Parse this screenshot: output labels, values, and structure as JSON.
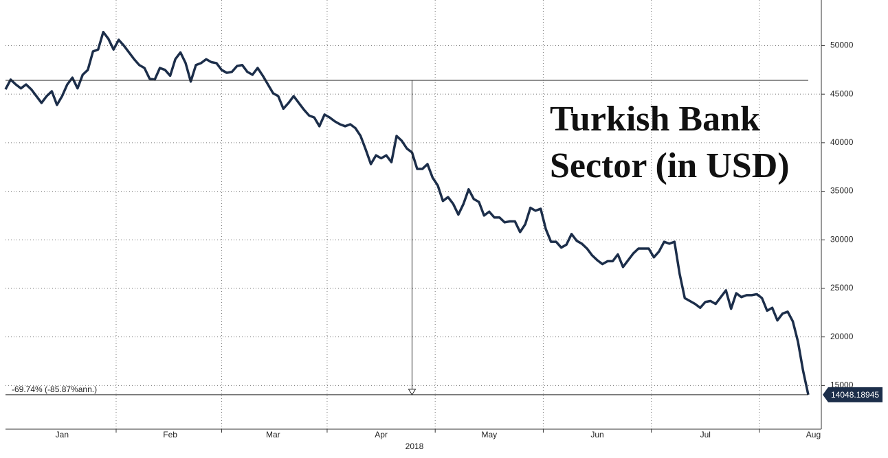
{
  "chart_data": {
    "type": "line",
    "title": "Turkish Bank Sector (in USD)",
    "xlabel": "2018",
    "series": [
      {
        "name": "Turkish Bank Sector",
        "color": "#1c2e4a",
        "values": [
          45500,
          46500,
          46000,
          45600,
          46000,
          45500,
          44800,
          44100,
          44800,
          45300,
          43900,
          44800,
          46000,
          46700,
          45600,
          47000,
          47500,
          49400,
          49600,
          51400,
          50700,
          49600,
          50600,
          50000,
          49300,
          48600,
          48000,
          47700,
          46600,
          46500,
          47700,
          47500,
          46900,
          48600,
          49300,
          48200,
          46300,
          48000,
          48200,
          48600,
          48300,
          48200,
          47500,
          47200,
          47300,
          47900,
          48000,
          47300,
          47000,
          47700,
          46900,
          46000,
          45100,
          44800,
          43500,
          44100,
          44800,
          44100,
          43400,
          42800,
          42600,
          41700,
          42900,
          42600,
          42200,
          41900,
          41700,
          41900,
          41500,
          40700,
          39300,
          37800,
          38700,
          38400,
          38700,
          38000,
          40700,
          40200,
          39400,
          39000,
          37300,
          37300,
          37800,
          36400,
          35600,
          34000,
          34400,
          33700,
          32600,
          33700,
          35200,
          34200,
          33900,
          32500,
          32900,
          32300,
          32300,
          31800,
          31900,
          31900,
          30800,
          31600,
          33300,
          33000,
          33200,
          31100,
          29800,
          29800,
          29200,
          29500,
          30600,
          29900,
          29600,
          29100,
          28400,
          27900,
          27500,
          27800,
          27800,
          28500,
          27200,
          27900,
          28600,
          29100,
          29100,
          29100,
          28200,
          28800,
          29800,
          29600,
          29800,
          26500,
          24000,
          23700,
          23400,
          23000,
          23600,
          23700,
          23400,
          24100,
          24800,
          22900,
          24500,
          24100,
          24300,
          24300,
          24400,
          24000,
          22700,
          23000,
          21700,
          22400,
          22600,
          21600,
          19500,
          16500,
          14048.18945
        ]
      }
    ],
    "xlim": [
      0,
      156
    ],
    "xticks": [
      {
        "value": 11,
        "label": "Jan"
      },
      {
        "value": 32,
        "label": "Feb"
      },
      {
        "value": 52,
        "label": "Mar"
      },
      {
        "value": 73,
        "label": "Apr"
      },
      {
        "value": 94,
        "label": "May"
      },
      {
        "value": 115,
        "label": "Jun"
      },
      {
        "value": 136,
        "label": "Jul"
      },
      {
        "value": 157,
        "label": "Aug"
      }
    ],
    "ylim": [
      10500,
      54700
    ],
    "yticks": [
      15000,
      20000,
      25000,
      30000,
      35000,
      40000,
      45000,
      50000
    ],
    "grid": true,
    "measure": {
      "from_value": 46425,
      "at_index": 79,
      "label": "-69.74% (-85.87%ann.)"
    }
  }
}
